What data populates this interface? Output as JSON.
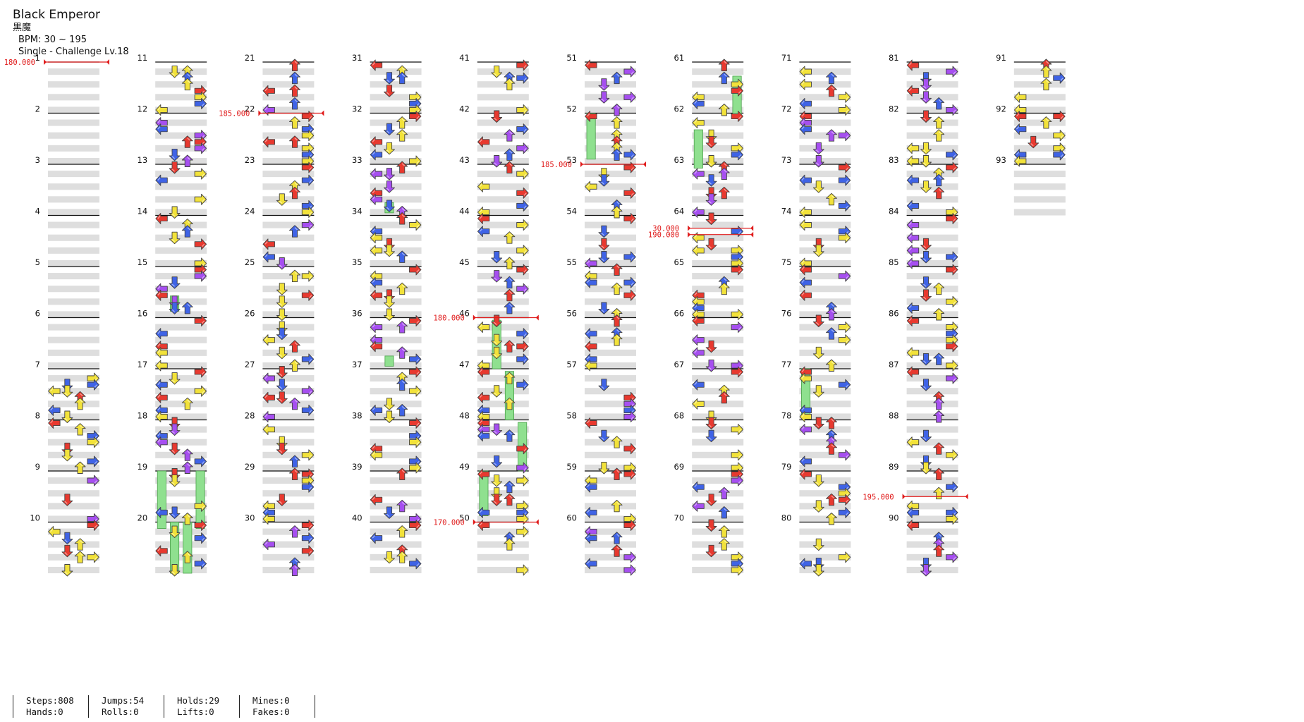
{
  "song": {
    "title": "Black Emperor",
    "subtitle": "黒魔",
    "bpm_line": "BPM: 30 ~ 195",
    "difficulty_line": "Single - Challenge  Lv.18"
  },
  "measures": {
    "count": 93,
    "per_column": 10,
    "rows_per_measure": 8,
    "labels": [
      "1",
      "2",
      "3",
      "4",
      "5",
      "6",
      "7",
      "8",
      "9",
      "10",
      "11",
      "12",
      "13",
      "14",
      "15",
      "16",
      "17",
      "18",
      "19",
      "20",
      "21",
      "22",
      "23",
      "24",
      "25",
      "26",
      "27",
      "28",
      "29",
      "30",
      "31",
      "32",
      "33",
      "34",
      "35",
      "36",
      "37",
      "38",
      "39",
      "40",
      "41",
      "42",
      "43",
      "44",
      "45",
      "46",
      "47",
      "48",
      "49",
      "50",
      "51",
      "52",
      "53",
      "54",
      "55",
      "56",
      "57",
      "58",
      "59",
      "60",
      "61",
      "62",
      "63",
      "64",
      "65",
      "66",
      "67",
      "68",
      "69",
      "70",
      "71",
      "72",
      "73",
      "74",
      "75",
      "76",
      "77",
      "78",
      "79",
      "80",
      "81",
      "82",
      "83",
      "84",
      "85",
      "86",
      "87",
      "88",
      "89",
      "90",
      "91",
      "92",
      "93"
    ]
  },
  "tempo_changes": [
    {
      "label": "180.000",
      "measure": 1,
      "beat": 0
    },
    {
      "label": "185.000",
      "measure": 22,
      "beat": 0
    },
    {
      "label": "180.000",
      "measure": 46,
      "beat": 0
    },
    {
      "label": "170.000",
      "measure": 50,
      "beat": 0
    },
    {
      "label": "185.000",
      "measure": 53,
      "beat": 0
    },
    {
      "label": "30.000",
      "measure": 64,
      "beat": 1
    },
    {
      "label": "190.000",
      "measure": 64,
      "beat": 1.5
    },
    {
      "label": "195.000",
      "measure": 89,
      "beat": 2
    }
  ],
  "colors": {
    "quarter": "#e8392f",
    "eighth": "#3f63e6",
    "twelfth": "#a64ff0",
    "sixteenth": "#f2e23a",
    "hold": "#8fe08f",
    "band": "#dedede",
    "tempo": "#e01b1b"
  },
  "icons": {
    "left": "arrow-left-icon",
    "down": "arrow-down-icon",
    "up": "arrow-up-icon",
    "right": "arrow-right-icon"
  },
  "stats": {
    "steps": "Steps:808",
    "hands": "Hands:0",
    "jumps": "Jumps:54",
    "rolls": "Rolls:0",
    "holds": "Holds:29",
    "lifts": "Lifts:0",
    "mines": "Mines:0",
    "fakes": "Fakes:0"
  }
}
